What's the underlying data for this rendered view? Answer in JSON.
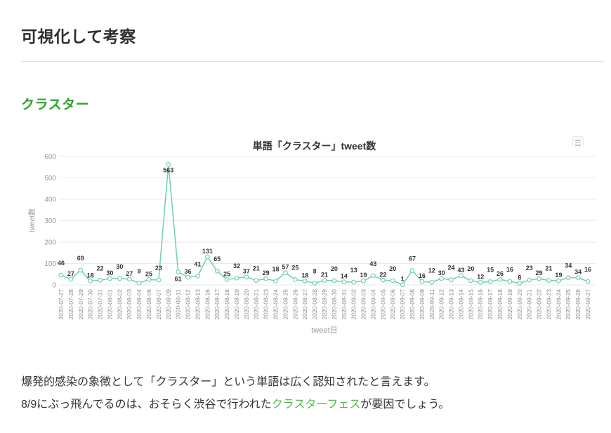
{
  "page": {
    "section_title": "可視化して考察",
    "subsection_title": "クラスター",
    "paragraph_line1": "爆発的感染の象徴として「クラスター」という単語は広く認知されたと言えます。",
    "paragraph_line2_before": "8/9にぶっ飛んでるのは、おそらく渋谷で行われた",
    "paragraph_link_text": "クラスターフェス",
    "paragraph_line2_after": "が要因でしょう。"
  },
  "colors": {
    "heading_green": "#2ea12e",
    "link_green": "#55b94e",
    "line_green": "#74d3ac",
    "grid_gray": "#e9e9e9",
    "tick_gray": "#8c8c8c",
    "axis_title_gray": "#999999",
    "label_dark": "#333333"
  },
  "chart_data": {
    "type": "line",
    "title": "単語「クラスター」tweet数",
    "xlabel": "tweet日",
    "ylabel": "tweet数",
    "ylim": [
      0,
      600
    ],
    "yticks": [
      0,
      100,
      200,
      300,
      400,
      500,
      600
    ],
    "grid": true,
    "legend": "none",
    "line_color": "#74d3ac",
    "marker": "open-circle",
    "categories": [
      "2020-07-27",
      "2020-07-28",
      "2020-07-29",
      "2020-07-30",
      "2020-07-31",
      "2020-08-01",
      "2020-08-02",
      "2020-08-03",
      "2020-08-04",
      "2020-08-06",
      "2020-08-07",
      "2020-08-09",
      "2020-08-11",
      "2020-08-12",
      "2020-08-13",
      "2020-08-16",
      "2020-08-17",
      "2020-08-18",
      "2020-08-19",
      "2020-08-20",
      "2020-08-21",
      "2020-08-23",
      "2020-08-24",
      "2020-08-25",
      "2020-08-26",
      "2020-08-27",
      "2020-08-28",
      "2020-08-29",
      "2020-08-30",
      "2020-08-31",
      "2020-09-02",
      "2020-09-03",
      "2020-09-04",
      "2020-09-05",
      "2020-09-06",
      "2020-09-07",
      "2020-09-08",
      "2020-09-09",
      "2020-09-11",
      "2020-09-12",
      "2020-09-13",
      "2020-09-14",
      "2020-09-15",
      "2020-09-16",
      "2020-09-17",
      "2020-09-18",
      "2020-09-19",
      "2020-09-20",
      "2020-09-21",
      "2020-09-22",
      "2020-09-23",
      "2020-09-24",
      "2020-09-25",
      "2020-09-26",
      "2020-09-27"
    ],
    "values": [
      46,
      27,
      69,
      18,
      22,
      30,
      30,
      27,
      9,
      25,
      23,
      563,
      61,
      36,
      41,
      131,
      65,
      25,
      32,
      37,
      21,
      29,
      18,
      57,
      25,
      18,
      8,
      21,
      20,
      14,
      13,
      19,
      43,
      22,
      20,
      1,
      67,
      16,
      12,
      30,
      24,
      43,
      20,
      12,
      15,
      26,
      16,
      8,
      23,
      29,
      21,
      19,
      34,
      34,
      16
    ]
  }
}
